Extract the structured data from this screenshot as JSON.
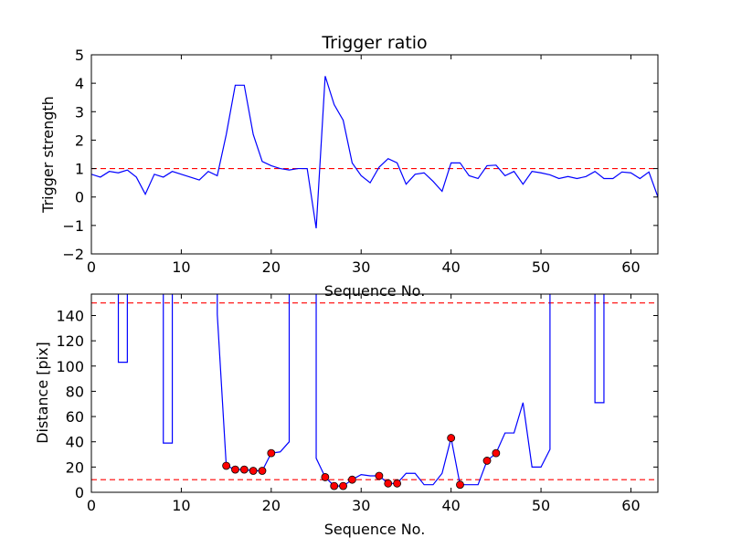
{
  "chart_data": [
    {
      "type": "line",
      "title": "Trigger ratio",
      "xlabel": "Sequence No.",
      "ylabel": "Trigger strength",
      "xlim": [
        0,
        63
      ],
      "ylim": [
        -2,
        5
      ],
      "xticks": [
        0,
        10,
        20,
        30,
        40,
        50,
        60
      ],
      "yticks": [
        -2,
        -1,
        0,
        1,
        2,
        3,
        4,
        5
      ],
      "xtick_labels": [
        "0",
        "10",
        "20",
        "30",
        "40",
        "50",
        "60"
      ],
      "ytick_labels": [
        "−2",
        "−1",
        "0",
        "1",
        "2",
        "3",
        "4",
        "5"
      ],
      "series": [
        {
          "color": "#0000ff",
          "x": [
            0,
            1,
            2,
            3,
            4,
            5,
            6,
            7,
            8,
            9,
            10,
            11,
            12,
            13,
            14,
            15,
            16,
            17,
            18,
            19,
            20,
            21,
            22,
            23,
            24,
            25,
            26,
            27,
            28,
            29,
            30,
            31,
            32,
            33,
            34,
            35,
            36,
            37,
            38,
            39,
            40,
            41,
            42,
            43,
            44,
            45,
            46,
            47,
            48,
            49,
            50,
            51,
            52,
            53,
            54,
            55,
            56,
            57,
            58,
            59,
            60,
            61,
            62,
            63
          ],
          "values": [
            0.8,
            0.7,
            0.9,
            0.85,
            0.95,
            0.7,
            0.1,
            0.8,
            0.7,
            0.9,
            0.8,
            0.7,
            0.6,
            0.9,
            0.75,
            2.2,
            3.93,
            3.93,
            2.2,
            1.25,
            1.1,
            1.0,
            0.95,
            1.0,
            1.0,
            -1.1,
            4.25,
            3.25,
            2.7,
            1.2,
            0.75,
            0.5,
            1.05,
            1.35,
            1.2,
            0.45,
            0.8,
            0.85,
            0.55,
            0.2,
            1.2,
            1.2,
            0.75,
            0.65,
            1.1,
            1.12,
            0.75,
            0.9,
            0.45,
            0.9,
            0.85,
            0.78,
            0.65,
            0.72,
            0.65,
            0.72,
            0.9,
            0.65,
            0.65,
            0.88,
            0.85,
            0.65,
            0.88,
            0.0
          ]
        }
      ],
      "reference_lines": [
        {
          "y": 1,
          "color": "#ff0000",
          "style": "dashed"
        }
      ]
    },
    {
      "type": "line",
      "title": "",
      "xlabel": "Sequence No.",
      "ylabel": "Distance [pix]",
      "xlim": [
        0,
        63
      ],
      "ylim": [
        0,
        157
      ],
      "xticks": [
        0,
        10,
        20,
        30,
        40,
        50,
        60
      ],
      "yticks": [
        0,
        20,
        40,
        60,
        80,
        100,
        120,
        140
      ],
      "xtick_labels": [
        "0",
        "10",
        "20",
        "30",
        "40",
        "50",
        "60"
      ],
      "ytick_labels": [
        "0",
        "20",
        "40",
        "60",
        "80",
        "100",
        "120",
        "140"
      ],
      "series": [
        {
          "color": "#0000ff",
          "x": [
            3,
            3,
            4,
            4,
            8,
            8,
            9,
            9,
            14,
            14,
            15,
            16,
            17,
            18,
            19,
            20,
            21,
            22,
            22,
            25,
            25,
            26,
            27,
            28,
            29,
            30,
            31,
            32,
            33,
            34,
            35,
            36,
            37,
            38,
            39,
            40,
            41,
            42,
            43,
            44,
            45,
            46,
            47,
            48,
            49,
            50,
            51,
            51,
            56,
            56,
            57,
            57
          ],
          "values": [
            160,
            103,
            103,
            160,
            160,
            39,
            39,
            160,
            160,
            141,
            21,
            18,
            18,
            17,
            17,
            31,
            32,
            40,
            160,
            160,
            27,
            12,
            5,
            5,
            10,
            14,
            13,
            13,
            7,
            7,
            15,
            15,
            6,
            6,
            15,
            43,
            6,
            6,
            6,
            25,
            31,
            47,
            47,
            71,
            20,
            20,
            34,
            160,
            160,
            71,
            71,
            160
          ]
        }
      ],
      "markers": {
        "color": "#ff0000",
        "edge_color": "#000000",
        "x": [
          15,
          16,
          17,
          18,
          19,
          20,
          26,
          27,
          28,
          29,
          32,
          33,
          34,
          40,
          41,
          44,
          45
        ],
        "values": [
          21,
          18,
          18,
          17,
          17,
          31,
          12,
          5,
          5,
          10,
          13,
          7,
          7,
          43,
          6,
          25,
          31
        ]
      },
      "reference_lines": [
        {
          "y": 150,
          "color": "#ff0000",
          "style": "dashed"
        },
        {
          "y": 10,
          "color": "#ff0000",
          "style": "dashed"
        }
      ]
    }
  ]
}
